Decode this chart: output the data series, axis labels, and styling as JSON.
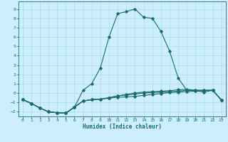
{
  "title": "",
  "xlabel": "Humidex (Indice chaleur)",
  "background_color": "#cceeff",
  "grid_color": "#aadddd",
  "line_color": "#1a6b6b",
  "xlim": [
    -0.5,
    23.5
  ],
  "ylim": [
    -2.5,
    9.8
  ],
  "xticks": [
    0,
    1,
    2,
    3,
    4,
    5,
    6,
    7,
    8,
    9,
    10,
    11,
    12,
    13,
    14,
    15,
    16,
    17,
    18,
    19,
    20,
    21,
    22,
    23
  ],
  "yticks": [
    -2,
    -1,
    0,
    1,
    2,
    3,
    4,
    5,
    6,
    7,
    8,
    9
  ],
  "line1_x": [
    0,
    1,
    2,
    3,
    4,
    5,
    6,
    7,
    8,
    9,
    10,
    11,
    12,
    13,
    14,
    15,
    16,
    17,
    18,
    19,
    20,
    21,
    22,
    23
  ],
  "line1_y": [
    -0.7,
    -1.1,
    -1.6,
    -2.0,
    -2.1,
    -2.15,
    -1.5,
    -0.85,
    -0.7,
    -0.65,
    -0.55,
    -0.45,
    -0.4,
    -0.35,
    -0.25,
    -0.15,
    -0.05,
    0.05,
    0.1,
    0.15,
    0.2,
    0.25,
    0.3,
    -0.75
  ],
  "line2_x": [
    0,
    1,
    2,
    3,
    4,
    5,
    6,
    7,
    8,
    9,
    10,
    11,
    12,
    13,
    14,
    15,
    16,
    17,
    18,
    19,
    20,
    21,
    22,
    23
  ],
  "line2_y": [
    -0.7,
    -1.1,
    -1.6,
    -2.0,
    -2.1,
    -2.15,
    -1.5,
    0.3,
    1.0,
    2.7,
    6.0,
    8.5,
    8.7,
    9.0,
    8.1,
    8.0,
    6.6,
    4.5,
    1.6,
    0.3,
    0.25,
    0.1,
    0.3,
    -0.75
  ],
  "line3_x": [
    0,
    1,
    2,
    3,
    4,
    5,
    6,
    7,
    8,
    9,
    10,
    11,
    12,
    13,
    14,
    15,
    16,
    17,
    18,
    19,
    20,
    21,
    22,
    23
  ],
  "line3_y": [
    -0.7,
    -1.1,
    -1.6,
    -2.0,
    -2.1,
    -2.15,
    -1.5,
    -0.85,
    -0.7,
    -0.65,
    -0.5,
    -0.3,
    -0.2,
    -0.1,
    0.0,
    0.05,
    0.1,
    0.15,
    0.2,
    0.3,
    0.3,
    0.3,
    0.3,
    -0.75
  ],
  "line4_x": [
    0,
    1,
    2,
    3,
    4,
    5,
    6,
    7,
    8,
    9,
    10,
    11,
    12,
    13,
    14,
    15,
    16,
    17,
    18,
    19,
    20,
    21,
    22,
    23
  ],
  "line4_y": [
    -0.7,
    -1.1,
    -1.6,
    -2.0,
    -2.1,
    -2.15,
    -1.5,
    -0.85,
    -0.7,
    -0.65,
    -0.5,
    -0.3,
    -0.15,
    0.0,
    0.1,
    0.15,
    0.2,
    0.25,
    0.35,
    0.4,
    0.3,
    0.3,
    0.3,
    -0.75
  ]
}
